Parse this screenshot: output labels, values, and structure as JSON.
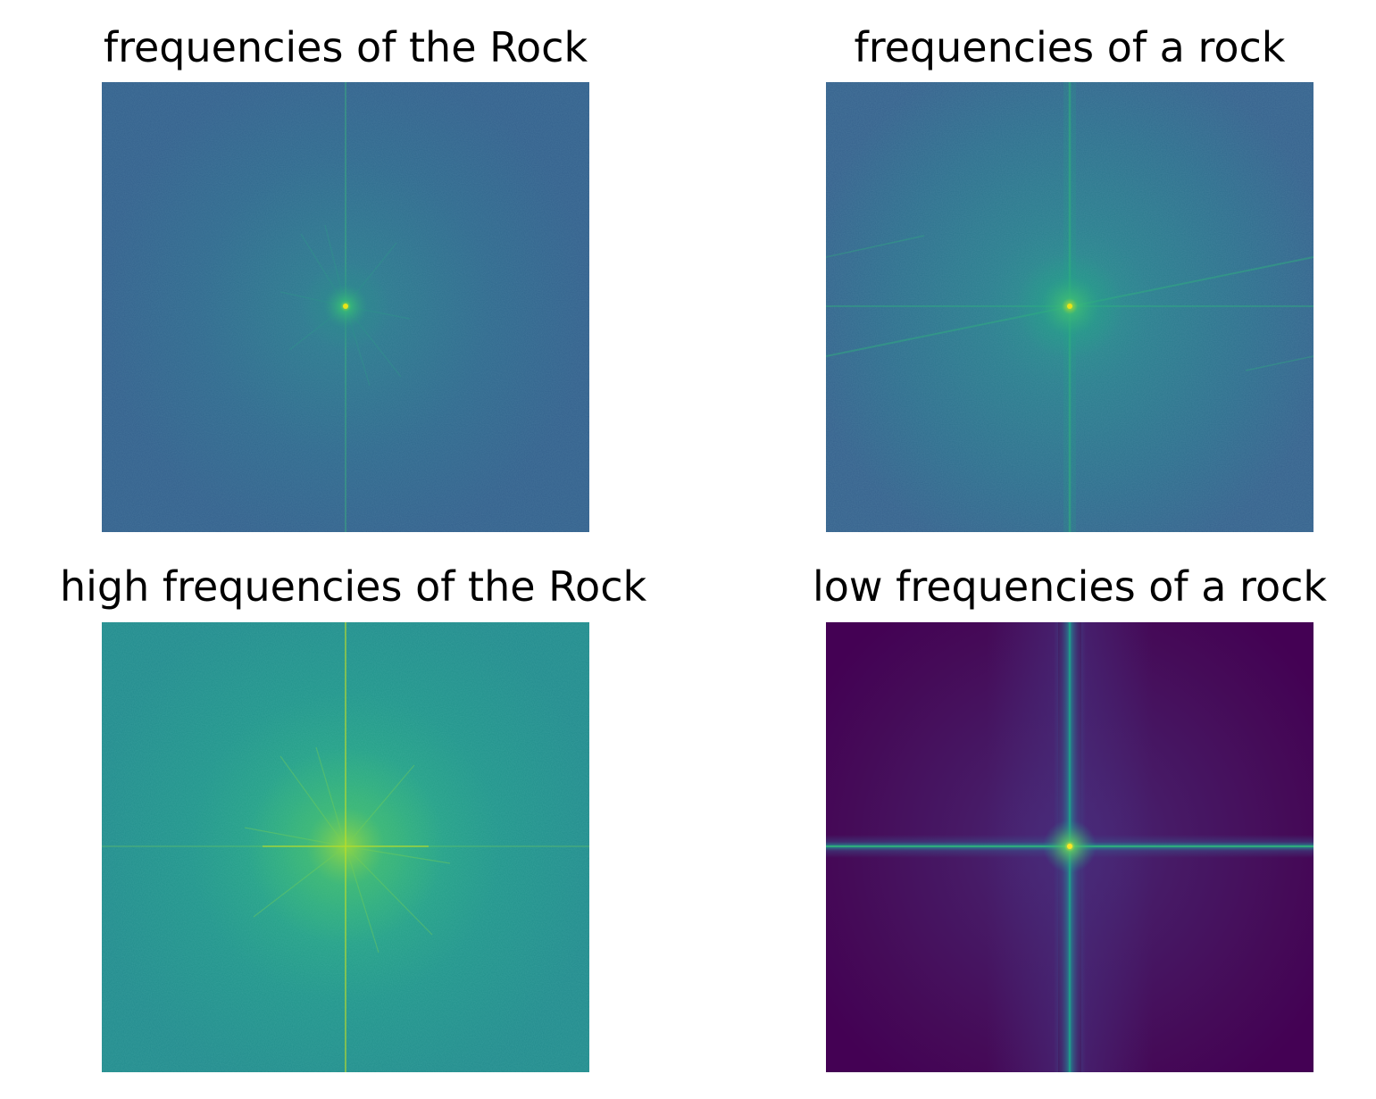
{
  "figure": {
    "panels": [
      {
        "title": "frequencies of the Rock",
        "colormap": "viridis",
        "base_color": "#2f6a8e"
      },
      {
        "title": "frequencies of a rock",
        "colormap": "viridis",
        "base_color": "#2b7390"
      },
      {
        "title": "high frequencies of the Rock",
        "colormap": "viridis",
        "base_color": "#22908c"
      },
      {
        "title": "low frequencies of a rock",
        "colormap": "viridis",
        "base_color": "#440154"
      }
    ]
  }
}
